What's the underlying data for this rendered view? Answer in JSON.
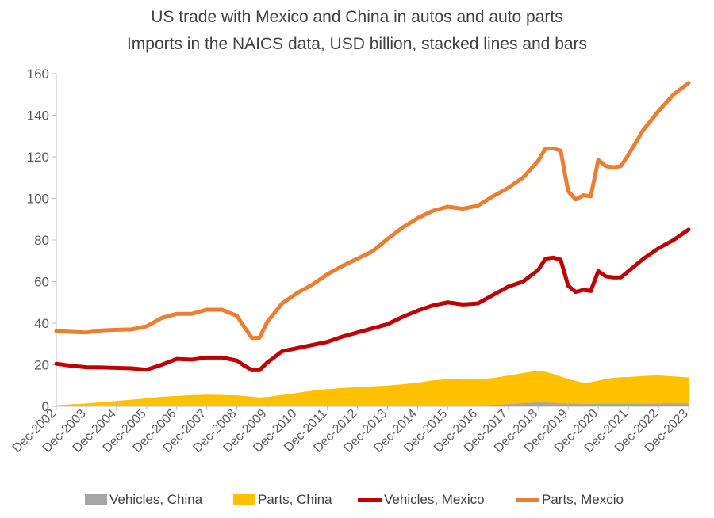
{
  "chart_data": {
    "type": "area",
    "title": "US trade with Mexico and China in autos and auto parts",
    "subtitle": "Imports in the NAICS data, USD billion, stacked lines and bars",
    "xlabel": "",
    "ylabel": "",
    "ylim": [
      0,
      160
    ],
    "yticks": [
      "0",
      "20",
      "40",
      "60",
      "80",
      "100",
      "120",
      "140",
      "160"
    ],
    "xtick_labels": [
      "Dec-2002",
      "Dec-2003",
      "Dec-2004",
      "Dec-2005",
      "Dec-2006",
      "Dec-2007",
      "Dec-2008",
      "Dec-2009",
      "Dec-2010",
      "Dec-2011",
      "Dec-2012",
      "Dec-2013",
      "Dec-2014",
      "Dec-2015",
      "Dec-2016",
      "Dec-2017",
      "Dec-2018",
      "Dec-2019",
      "Dec-2020",
      "Dec-2021",
      "Dec-2022",
      "Dec-2023"
    ],
    "x_dates": [
      "2002-12",
      "2003-06",
      "2003-12",
      "2004-06",
      "2004-12",
      "2005-06",
      "2005-12",
      "2006-06",
      "2006-12",
      "2007-06",
      "2007-12",
      "2008-06",
      "2008-12",
      "2009-03",
      "2009-06",
      "2009-09",
      "2009-12",
      "2010-06",
      "2010-12",
      "2011-06",
      "2011-12",
      "2012-06",
      "2012-12",
      "2013-06",
      "2013-12",
      "2014-06",
      "2014-12",
      "2015-06",
      "2015-12",
      "2016-06",
      "2016-12",
      "2017-06",
      "2017-12",
      "2018-06",
      "2018-12",
      "2019-03",
      "2019-06",
      "2019-09",
      "2019-12",
      "2020-03",
      "2020-06",
      "2020-09",
      "2020-12",
      "2021-03",
      "2021-06",
      "2021-09",
      "2021-12",
      "2022-06",
      "2022-12",
      "2023-06",
      "2023-12"
    ],
    "legend_position": "bottom",
    "grid": false,
    "series": [
      {
        "name": "Vehicles, China",
        "style": "area",
        "color": "#a5a5a5",
        "values": [
          0,
          0,
          0,
          0,
          0,
          0,
          0,
          0,
          0,
          0,
          0,
          0,
          0,
          0,
          0,
          0,
          0,
          0,
          0,
          0,
          0,
          0,
          0,
          0,
          0,
          0,
          0,
          0,
          0,
          0,
          0.2,
          0.6,
          1.0,
          1.5,
          1.8,
          1.8,
          1.6,
          1.4,
          1.2,
          1.2,
          1.1,
          1.1,
          1.2,
          1.2,
          1.2,
          1.2,
          1.2,
          1.2,
          1.3,
          1.4,
          1.4
        ]
      },
      {
        "name": "Parts, China",
        "style": "area",
        "color": "#ffc000",
        "values": [
          0.5,
          1.0,
          1.4,
          2.0,
          2.6,
          3.2,
          3.8,
          4.6,
          5.0,
          5.4,
          5.6,
          5.5,
          5.3,
          5.0,
          4.6,
          4.3,
          4.5,
          5.5,
          6.5,
          7.5,
          8.3,
          8.8,
          9.3,
          9.6,
          10.0,
          10.6,
          11.4,
          12.5,
          13.1,
          12.9,
          12.7,
          13.0,
          13.8,
          14.5,
          15.4,
          14.8,
          14.0,
          13.0,
          12.0,
          11.0,
          10.2,
          10.5,
          11.2,
          12.0,
          12.5,
          12.8,
          12.9,
          13.4,
          13.6,
          13.0,
          12.5
        ]
      },
      {
        "name": "Vehicles, Mexico",
        "style": "line",
        "color": "#c00000",
        "values": [
          20.5,
          19.5,
          18.8,
          18.7,
          18.5,
          18.3,
          17.6,
          20.0,
          22.8,
          22.5,
          23.5,
          23.5,
          22.0,
          19.5,
          17.4,
          17.4,
          21.0,
          26.5,
          28.0,
          29.5,
          31.0,
          33.5,
          35.5,
          37.5,
          39.5,
          43.0,
          46.0,
          48.5,
          50.0,
          49.0,
          49.5,
          53.5,
          57.5,
          60.0,
          65.5,
          71.0,
          71.5,
          70.5,
          58.0,
          55.0,
          56.0,
          55.5,
          65.0,
          62.5,
          62.0,
          62.0,
          65.0,
          71.0,
          76.0,
          80.0,
          85.0
        ]
      },
      {
        "name": "Parts, Mexcio",
        "style": "line",
        "color": "#ed7d31",
        "values": [
          36.2,
          35.8,
          35.5,
          36.5,
          36.8,
          37.0,
          38.5,
          42.5,
          44.5,
          44.5,
          46.5,
          46.5,
          43.5,
          38.0,
          32.8,
          33.0,
          40.5,
          49.5,
          54.5,
          58.5,
          63.5,
          67.5,
          71.0,
          74.5,
          80.5,
          86.0,
          90.5,
          94.0,
          96.0,
          95.0,
          96.5,
          101.0,
          105.0,
          110.0,
          118.0,
          124.0,
          124.0,
          123.0,
          103.5,
          99.5,
          101.5,
          101.0,
          118.5,
          115.5,
          115.0,
          115.5,
          121.0,
          133.0,
          142.0,
          150.0,
          155.5
        ]
      }
    ]
  }
}
